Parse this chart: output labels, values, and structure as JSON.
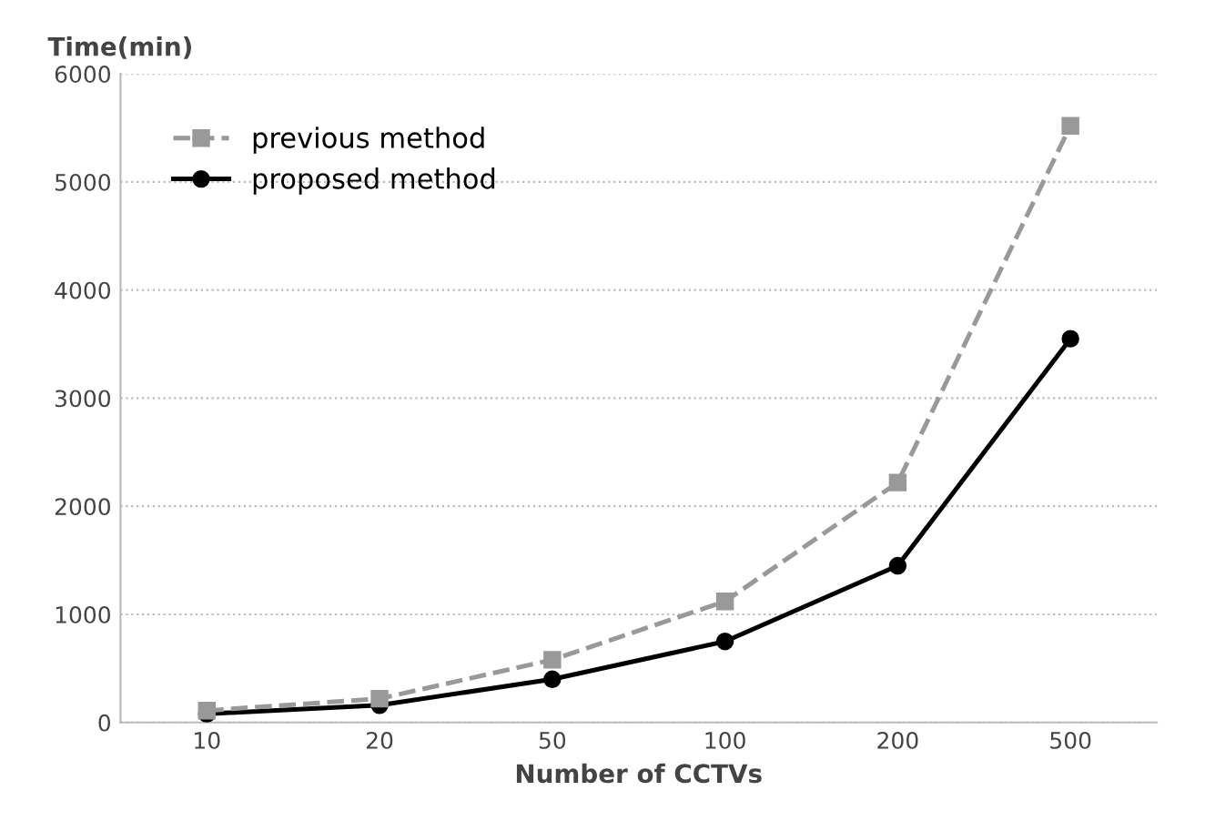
{
  "chart_data": {
    "type": "line",
    "xlabel": "Number of CCTVs",
    "ylabel": "Time(min)",
    "categories": [
      "10",
      "20",
      "50",
      "100",
      "200",
      "500"
    ],
    "series": [
      {
        "name": "previous method",
        "color": "#999999",
        "values": [
          110,
          220,
          580,
          1120,
          2220,
          5520
        ],
        "marker": "square",
        "line_style": "dashed"
      },
      {
        "name": "proposed method",
        "color": "#000000",
        "values": [
          80,
          160,
          400,
          750,
          1450,
          3550
        ],
        "marker": "circle",
        "line_style": "solid"
      }
    ],
    "ylim": [
      0,
      6000
    ],
    "yticks": [
      0,
      1000,
      2000,
      3000,
      4000,
      5000,
      6000
    ],
    "grid": "y",
    "legend": "top left"
  }
}
